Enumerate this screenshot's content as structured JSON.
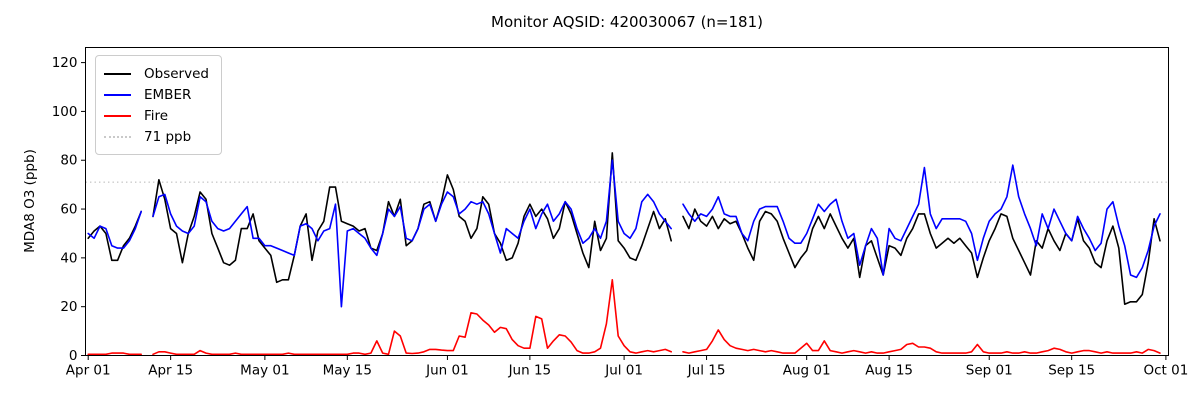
{
  "figure_title": "Monitor AQSID: 420030067 (n=181)",
  "chart_data": {
    "type": "line",
    "title": "Monitor AQSID: 420030067 (n=181)",
    "xlabel": "",
    "ylabel": "MDA8 O3 (ppb)",
    "ylim": [
      0,
      126
    ],
    "yticks": [
      0,
      20,
      40,
      60,
      80,
      100,
      120
    ],
    "grid": false,
    "legend_position": "upper left",
    "x_axis": {
      "unit": "day",
      "start_label": "Apr 01",
      "end_label": "Oct 01",
      "total_days": 183,
      "ticks": [
        {
          "day": 0,
          "label": "Apr 01"
        },
        {
          "day": 14,
          "label": "Apr 15"
        },
        {
          "day": 30,
          "label": "May 01"
        },
        {
          "day": 44,
          "label": "May 15"
        },
        {
          "day": 61,
          "label": "Jun 01"
        },
        {
          "day": 75,
          "label": "Jun 15"
        },
        {
          "day": 91,
          "label": "Jul 01"
        },
        {
          "day": 105,
          "label": "Jul 15"
        },
        {
          "day": 122,
          "label": "Aug 01"
        },
        {
          "day": 136,
          "label": "Aug 15"
        },
        {
          "day": 153,
          "label": "Sep 01"
        },
        {
          "day": 167,
          "label": "Sep 15"
        },
        {
          "day": 183,
          "label": "Oct 01"
        }
      ]
    },
    "threshold": {
      "value": 71,
      "label": "71 ppb",
      "color": "#c9c9c9",
      "style": "dotted"
    },
    "series": [
      {
        "name": "Observed",
        "color": "#000000",
        "values": [
          48,
          51,
          53,
          50,
          39,
          39,
          45,
          48,
          53,
          59,
          null,
          57,
          72,
          64,
          52,
          50,
          38,
          50,
          57,
          67,
          64,
          50,
          44,
          38,
          37,
          39,
          52,
          52,
          58,
          47,
          44,
          41,
          30,
          31,
          31,
          41,
          53,
          58,
          39,
          51,
          55,
          69,
          69,
          55,
          54,
          53,
          51,
          52,
          44,
          43,
          50,
          63,
          57,
          64,
          45,
          47,
          52,
          62,
          63,
          55,
          63,
          74,
          68,
          57,
          55,
          48,
          52,
          65,
          62,
          50,
          46,
          39,
          40,
          46,
          57,
          62,
          57,
          60,
          56,
          48,
          52,
          63,
          58,
          50,
          42,
          36,
          55,
          43,
          48,
          83,
          47,
          44,
          40,
          39,
          45,
          52,
          59,
          52,
          56,
          47,
          null,
          57,
          52,
          60,
          55,
          53,
          57,
          52,
          56,
          54,
          55,
          50,
          44,
          39,
          55,
          59,
          58,
          55,
          48,
          42,
          36,
          40,
          43,
          52,
          57,
          52,
          58,
          53,
          48,
          44,
          48,
          32,
          45,
          47,
          40,
          33,
          45,
          44,
          41,
          48,
          52,
          58,
          58,
          50,
          44,
          46,
          48,
          46,
          48,
          45,
          42,
          32,
          40,
          47,
          52,
          58,
          57,
          48,
          43,
          38,
          33,
          47,
          44,
          52,
          47,
          43,
          50,
          47,
          56,
          47,
          44,
          38,
          36,
          47,
          53,
          44,
          21,
          22,
          22,
          25,
          38,
          56,
          47
        ]
      },
      {
        "name": "EMBER",
        "color": "#0000ff",
        "values": [
          50,
          48,
          53,
          52,
          45,
          44,
          44,
          47,
          52,
          59,
          null,
          57,
          65,
          66,
          58,
          53,
          51,
          50,
          53,
          65,
          63,
          55,
          52,
          51,
          52,
          55,
          58,
          61,
          48,
          48,
          45,
          45,
          44,
          43,
          42,
          41,
          53,
          54,
          52,
          47,
          51,
          52,
          62,
          20,
          51,
          52,
          50,
          48,
          44,
          41,
          50,
          60,
          57,
          61,
          48,
          47,
          52,
          60,
          62,
          55,
          62,
          67,
          65,
          58,
          60,
          63,
          62,
          63,
          58,
          50,
          42,
          52,
          50,
          48,
          55,
          60,
          52,
          58,
          62,
          55,
          58,
          63,
          60,
          52,
          46,
          48,
          52,
          48,
          55,
          80,
          55,
          50,
          48,
          52,
          63,
          66,
          63,
          58,
          55,
          52,
          null,
          62,
          58,
          55,
          58,
          57,
          60,
          65,
          58,
          57,
          57,
          50,
          47,
          55,
          60,
          61,
          61,
          61,
          55,
          48,
          46,
          46,
          50,
          56,
          62,
          59,
          62,
          64,
          55,
          48,
          50,
          37,
          45,
          52,
          48,
          33,
          52,
          48,
          47,
          52,
          57,
          62,
          77,
          58,
          52,
          56,
          56,
          56,
          56,
          55,
          50,
          39,
          48,
          55,
          58,
          60,
          65,
          78,
          65,
          58,
          52,
          45,
          58,
          52,
          60,
          55,
          50,
          47,
          57,
          52,
          48,
          43,
          46,
          60,
          63,
          53,
          45,
          33,
          32,
          36,
          43,
          53,
          58
        ]
      },
      {
        "name": "Fire",
        "color": "#ff0000",
        "values": [
          0.5,
          0.5,
          0.5,
          0.5,
          1,
          1,
          1,
          0.5,
          0.5,
          0.5,
          null,
          0.5,
          1.5,
          1.5,
          1,
          0.5,
          0.5,
          0.5,
          0.5,
          2,
          1,
          0.5,
          0.5,
          0.5,
          0.5,
          1,
          0.5,
          0.5,
          0.5,
          0.5,
          0.5,
          0.5,
          0.5,
          0.5,
          1,
          0.5,
          0.5,
          0.5,
          0.5,
          0.5,
          0.5,
          0.5,
          0.5,
          0.5,
          0.5,
          1,
          1,
          0.5,
          1,
          6,
          1,
          0.5,
          10,
          8,
          1,
          0.8,
          1,
          1.5,
          2.5,
          2.5,
          2.2,
          2,
          2,
          8,
          7.5,
          17.5,
          17,
          14.5,
          12.5,
          9.5,
          11.5,
          11,
          6.5,
          4,
          3,
          3,
          16,
          15,
          3,
          6,
          8.5,
          8,
          5.5,
          2,
          1,
          1,
          1.5,
          3,
          13,
          31,
          8,
          4,
          1.5,
          1,
          1.5,
          2,
          1.5,
          2,
          2.5,
          1.5,
          null,
          1.5,
          1,
          1.5,
          2,
          2.5,
          6,
          10.5,
          6.5,
          4,
          3,
          2.5,
          2,
          2.5,
          2,
          1.5,
          2,
          1.5,
          1,
          1,
          1,
          3,
          5,
          2,
          2,
          6,
          2,
          1.5,
          1,
          1.5,
          2,
          1.5,
          1,
          1.5,
          1,
          1,
          1.5,
          2,
          2.5,
          4.5,
          5,
          3.5,
          3.5,
          3,
          1.5,
          1,
          1,
          1,
          1,
          1,
          1.5,
          4.5,
          1.5,
          1,
          1,
          1,
          1.5,
          1,
          1,
          1.5,
          1,
          1,
          1.5,
          2,
          3,
          2.5,
          1.5,
          1,
          1.5,
          2,
          2,
          1.5,
          1,
          1.5,
          1,
          1,
          1,
          1,
          1.5,
          1,
          2.5,
          2,
          1
        ]
      }
    ],
    "legend": {
      "entries": [
        "Observed",
        "EMBER",
        "Fire",
        "71 ppb"
      ]
    }
  }
}
